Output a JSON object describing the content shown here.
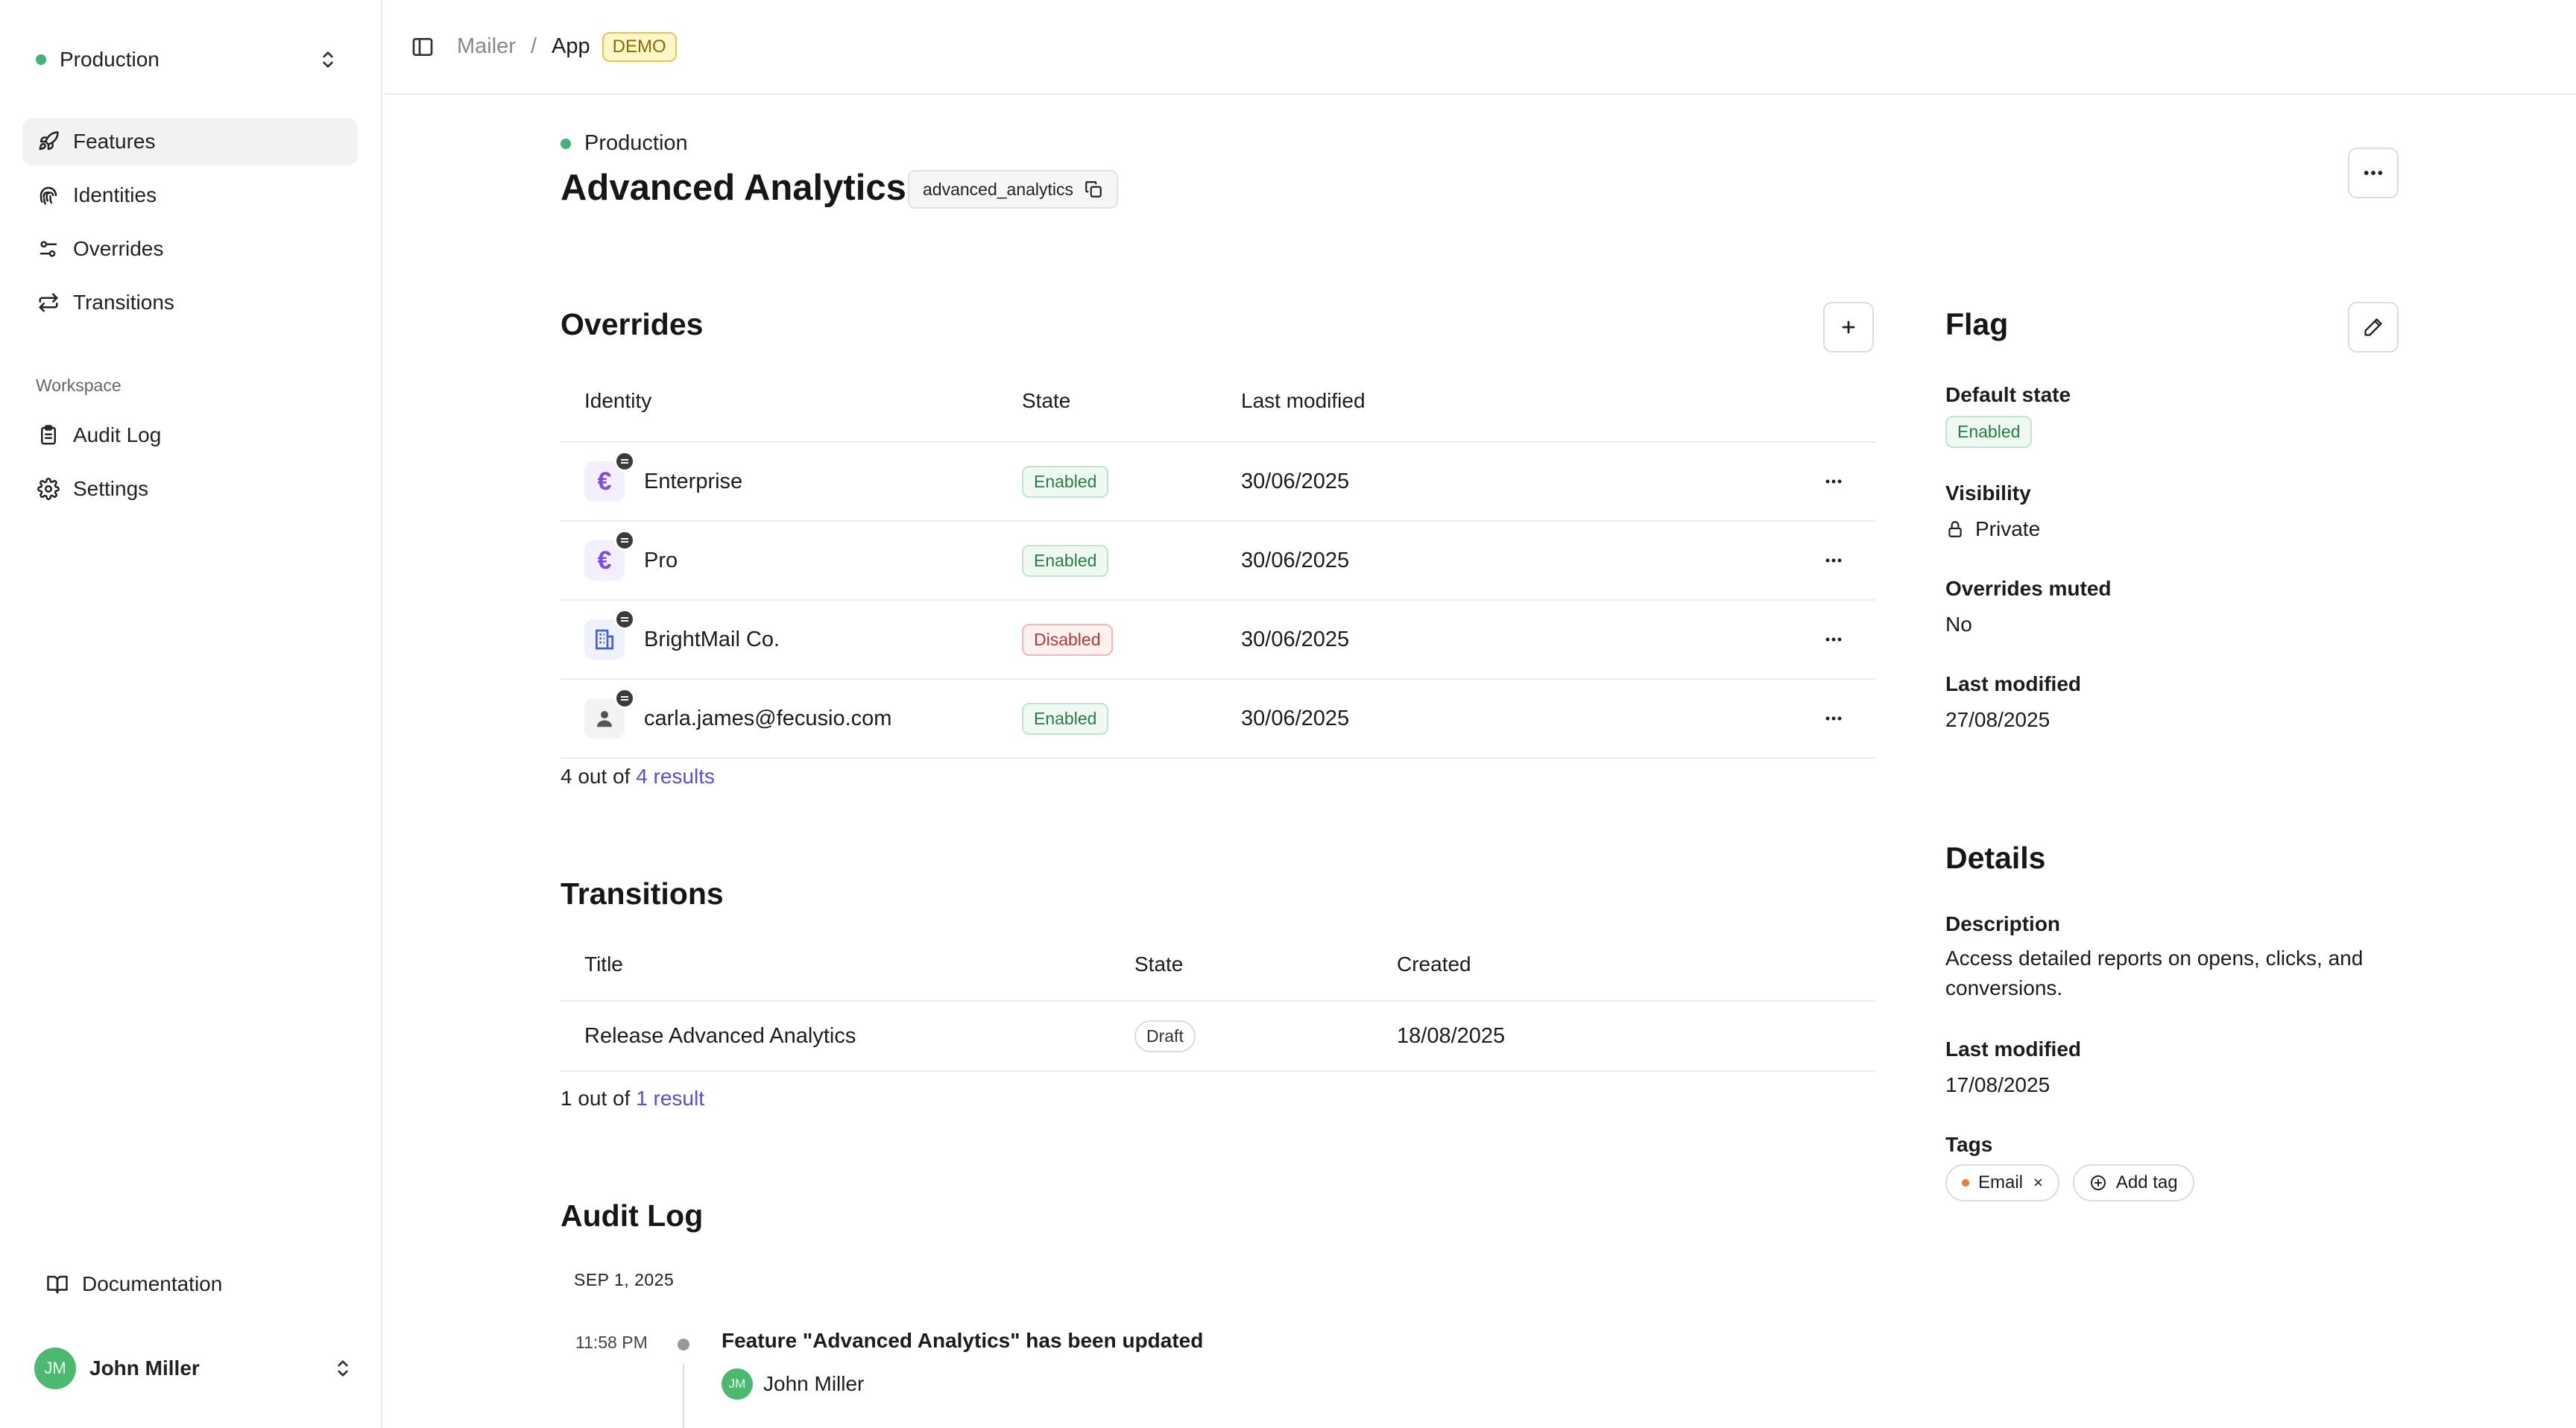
{
  "sidebar": {
    "environment": "Production",
    "nav": [
      {
        "label": "Features",
        "icon": "rocket-icon"
      },
      {
        "label": "Identities",
        "icon": "fingerprint-icon"
      },
      {
        "label": "Overrides",
        "icon": "sliders-icon"
      },
      {
        "label": "Transitions",
        "icon": "arrows-icon"
      }
    ],
    "workspace_label": "Workspace",
    "workspace_nav": [
      {
        "label": "Audit Log",
        "icon": "clipboard-icon"
      },
      {
        "label": "Settings",
        "icon": "gear-icon"
      }
    ],
    "documentation": "Documentation",
    "user": {
      "initials": "JM",
      "name": "John Miller"
    }
  },
  "breadcrumb": {
    "items": [
      "Mailer",
      "App"
    ],
    "separator": "/",
    "badge": "DEMO"
  },
  "header": {
    "environment": "Production",
    "title": "Advanced Analytics",
    "key": "advanced_analytics",
    "menu": "more-icon"
  },
  "overrides": {
    "title": "Overrides",
    "columns": [
      "Identity",
      "State",
      "Last modified"
    ],
    "rows": [
      {
        "identity": "Enterprise",
        "icon": "euro",
        "state": "Enabled",
        "last_modified": "30/06/2025"
      },
      {
        "identity": "Pro",
        "icon": "euro",
        "state": "Enabled",
        "last_modified": "30/06/2025"
      },
      {
        "identity": "BrightMail Co.",
        "icon": "building",
        "state": "Disabled",
        "last_modified": "30/06/2025"
      },
      {
        "identity": "carla.james@fecusio.com",
        "icon": "person",
        "state": "Enabled",
        "last_modified": "30/06/2025"
      }
    ],
    "count_prefix": "4 out of ",
    "count_link": "4 results"
  },
  "transitions": {
    "title": "Transitions",
    "columns": [
      "Title",
      "State",
      "Created"
    ],
    "rows": [
      {
        "title": "Release Advanced Analytics",
        "state": "Draft",
        "created": "18/08/2025"
      }
    ],
    "count_prefix": "1 out of ",
    "count_link": "1 result"
  },
  "audit_log": {
    "title": "Audit Log",
    "date": "SEP 1, 2025",
    "entries": [
      {
        "time": "11:58 PM",
        "text": "Feature \"Advanced Analytics\" has been updated",
        "user_initials": "JM",
        "user": "John Miller"
      }
    ]
  },
  "flag": {
    "title": "Flag",
    "default_state_label": "Default state",
    "default_state": "Enabled",
    "visibility_label": "Visibility",
    "visibility": "Private",
    "overrides_muted_label": "Overrides muted",
    "overrides_muted": "No",
    "last_modified_label": "Last modified",
    "last_modified": "27/08/2025"
  },
  "details": {
    "title": "Details",
    "description_label": "Description",
    "description": "Access detailed reports on opens, clicks, and conversions.",
    "last_modified_label": "Last modified",
    "last_modified": "17/08/2025",
    "tags_label": "Tags",
    "tags": [
      {
        "label": "Email",
        "color": "#f07a2a"
      }
    ],
    "add_tag": "Add tag"
  },
  "colors": {
    "accent": "#5a4de0",
    "success": "#3fb37a",
    "danger": "#b53a3a",
    "demo": "#e7c64a"
  }
}
